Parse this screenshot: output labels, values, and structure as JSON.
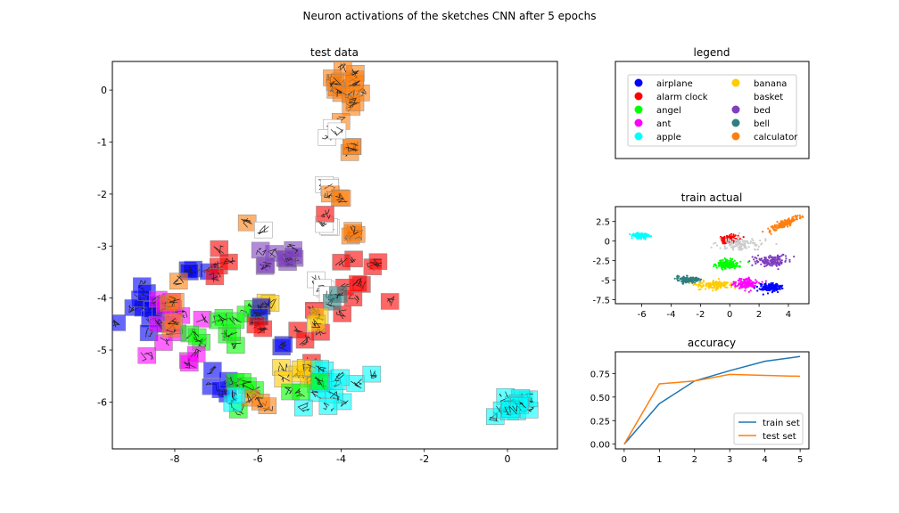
{
  "figure": {
    "suptitle": "Neuron activations of the sketches CNN after 5 epochs"
  },
  "classes": [
    {
      "name": "airplane",
      "color": "#0000ff"
    },
    {
      "name": "alarm clock",
      "color": "#ff0000"
    },
    {
      "name": "angel",
      "color": "#00ff00"
    },
    {
      "name": "ant",
      "color": "#ff00ff"
    },
    {
      "name": "apple",
      "color": "#00ffff"
    },
    {
      "name": "banana",
      "color": "#ffcc00"
    },
    {
      "name": "basket",
      "color": "#ffffff"
    },
    {
      "name": "bed",
      "color": "#7f3fbf"
    },
    {
      "name": "bell",
      "color": "#2f7f7f"
    },
    {
      "name": "calculator",
      "color": "#ff7f0e"
    }
  ],
  "chart_data": [
    {
      "type": "scatter",
      "title": "test data",
      "xticks": [
        -8,
        -6,
        -4,
        -2,
        0
      ],
      "yticks": [
        0,
        -1,
        -2,
        -3,
        -4,
        -5,
        -6
      ],
      "xlim": [
        -9.5,
        1.2
      ],
      "ylim": [
        -6.9,
        0.55
      ],
      "clusters": [
        {
          "class": "calculator",
          "x": -3.9,
          "y": 0.0,
          "sx": 0.2,
          "sy": 0.3,
          "n": 14
        },
        {
          "class": "calculator",
          "x": -3.8,
          "y": -0.9,
          "sx": 0.15,
          "sy": 0.2,
          "n": 4
        },
        {
          "class": "basket",
          "x": -4.3,
          "y": -0.9,
          "sx": 0.15,
          "sy": 0.2,
          "n": 3
        },
        {
          "class": "basket",
          "x": -4.3,
          "y": -1.85,
          "sx": 0.2,
          "sy": 0.1,
          "n": 3
        },
        {
          "class": "calculator",
          "x": -4.0,
          "y": -2.0,
          "sx": 0.2,
          "sy": 0.15,
          "n": 3
        },
        {
          "class": "calculator",
          "x": -3.9,
          "y": -2.8,
          "sx": 0.25,
          "sy": 0.2,
          "n": 4
        },
        {
          "class": "basket",
          "x": -4.3,
          "y": -2.65,
          "sx": 0.15,
          "sy": 0.15,
          "n": 3
        },
        {
          "class": "alarm clock",
          "x": -4.6,
          "y": -2.4,
          "sx": 0.1,
          "sy": 0.1,
          "n": 1
        },
        {
          "class": "calculator",
          "x": -6.2,
          "y": -2.6,
          "sx": 0.05,
          "sy": 0.05,
          "n": 1
        },
        {
          "class": "basket",
          "x": -5.8,
          "y": -2.65,
          "sx": 0.05,
          "sy": 0.05,
          "n": 1
        },
        {
          "class": "bed",
          "x": -5.5,
          "y": -3.25,
          "sx": 0.45,
          "sy": 0.2,
          "n": 10
        },
        {
          "class": "alarm clock",
          "x": -3.7,
          "y": -3.7,
          "sx": 0.35,
          "sy": 0.3,
          "n": 10
        },
        {
          "class": "basket",
          "x": -4.5,
          "y": -3.8,
          "sx": 0.3,
          "sy": 0.2,
          "n": 5
        },
        {
          "class": "airplane",
          "x": -8.6,
          "y": -4.1,
          "sx": 0.4,
          "sy": 0.35,
          "n": 12
        },
        {
          "class": "airplane",
          "x": -7.3,
          "y": -3.5,
          "sx": 0.3,
          "sy": 0.2,
          "n": 4
        },
        {
          "class": "ant",
          "x": -8.0,
          "y": -4.6,
          "sx": 0.45,
          "sy": 0.45,
          "n": 12
        },
        {
          "class": "alarm clock",
          "x": -7.0,
          "y": -3.3,
          "sx": 0.2,
          "sy": 0.25,
          "n": 4
        },
        {
          "class": "calculator",
          "x": -7.8,
          "y": -4.1,
          "sx": 0.4,
          "sy": 0.3,
          "n": 5
        },
        {
          "class": "angel",
          "x": -6.8,
          "y": -4.6,
          "sx": 0.5,
          "sy": 0.3,
          "n": 12
        },
        {
          "class": "banana",
          "x": -5.8,
          "y": -4.1,
          "sx": 0.2,
          "sy": 0.15,
          "n": 3
        },
        {
          "class": "airplane",
          "x": -6.0,
          "y": -4.3,
          "sx": 0.1,
          "sy": 0.1,
          "n": 2
        },
        {
          "class": "alarm clock",
          "x": -6.0,
          "y": -4.6,
          "sx": 0.15,
          "sy": 0.1,
          "n": 2
        },
        {
          "class": "airplane",
          "x": -6.8,
          "y": -5.8,
          "sx": 0.3,
          "sy": 0.2,
          "n": 4
        },
        {
          "class": "angel",
          "x": -6.3,
          "y": -5.7,
          "sx": 0.3,
          "sy": 0.2,
          "n": 5
        },
        {
          "class": "calculator",
          "x": -6.0,
          "y": -6.0,
          "sx": 0.15,
          "sy": 0.15,
          "n": 3
        },
        {
          "class": "apple",
          "x": -6.6,
          "y": -5.9,
          "sx": 0.1,
          "sy": 0.1,
          "n": 2
        },
        {
          "class": "bell",
          "x": -4.2,
          "y": -4.2,
          "sx": 0.15,
          "sy": 0.2,
          "n": 2
        },
        {
          "class": "alarm clock",
          "x": -4.7,
          "y": -4.6,
          "sx": 0.25,
          "sy": 0.3,
          "n": 5
        },
        {
          "class": "banana",
          "x": -4.6,
          "y": -4.5,
          "sx": 0.15,
          "sy": 0.15,
          "n": 2
        },
        {
          "class": "banana",
          "x": -5.0,
          "y": -5.5,
          "sx": 0.4,
          "sy": 0.15,
          "n": 9
        },
        {
          "class": "apple",
          "x": -4.3,
          "y": -5.7,
          "sx": 0.5,
          "sy": 0.3,
          "n": 14
        },
        {
          "class": "airplane",
          "x": -5.5,
          "y": -5.0,
          "sx": 0.15,
          "sy": 0.1,
          "n": 2
        },
        {
          "class": "angel",
          "x": -4.9,
          "y": -5.6,
          "sx": 0.2,
          "sy": 0.2,
          "n": 3
        },
        {
          "class": "ant",
          "x": -7.6,
          "y": -5.2,
          "sx": 0.2,
          "sy": 0.2,
          "n": 3
        },
        {
          "class": "airplane",
          "x": -7.2,
          "y": -5.3,
          "sx": 0.1,
          "sy": 0.1,
          "n": 1
        },
        {
          "class": "apple",
          "x": 0.2,
          "y": -6.0,
          "sx": 0.35,
          "sy": 0.2,
          "n": 16
        }
      ]
    },
    {
      "type": "scatter",
      "title": "train actual",
      "xticks": [
        -6,
        -4,
        -2,
        0,
        2,
        4
      ],
      "yticks": [
        2.5,
        0.0,
        -2.5,
        -5.0,
        -7.5
      ],
      "xlim": [
        -7.8,
        5.4
      ],
      "ylim": [
        -8.0,
        4.4
      ],
      "clusters": [
        {
          "class": "apple",
          "x": -6.1,
          "y": 0.7,
          "sx": 0.5,
          "sy": 0.3,
          "n": 120
        },
        {
          "class": "alarm clock",
          "x": 0.0,
          "y": 0.2,
          "sx": 0.45,
          "sy": 0.5,
          "n": 150
        },
        {
          "class": "basket",
          "x": 0.8,
          "y": -0.4,
          "sx": 1.3,
          "sy": 0.8,
          "n": 120
        },
        {
          "class": "calculator",
          "x": 3.7,
          "y": 2.2,
          "sx": 0.65,
          "sy": 0.5,
          "n": 170
        },
        {
          "class": "bed",
          "x": 2.8,
          "y": -2.5,
          "sx": 0.9,
          "sy": 0.55,
          "n": 150
        },
        {
          "class": "angel",
          "x": -0.2,
          "y": -3.0,
          "sx": 0.65,
          "sy": 0.45,
          "n": 170
        },
        {
          "class": "bell",
          "x": -2.8,
          "y": -4.9,
          "sx": 0.6,
          "sy": 0.35,
          "n": 150
        },
        {
          "class": "banana",
          "x": -1.0,
          "y": -5.6,
          "sx": 1.0,
          "sy": 0.4,
          "n": 160
        },
        {
          "class": "ant",
          "x": 1.1,
          "y": -5.5,
          "sx": 0.7,
          "sy": 0.6,
          "n": 130
        },
        {
          "class": "airplane",
          "x": 2.8,
          "y": -5.9,
          "sx": 0.6,
          "sy": 0.45,
          "n": 180
        }
      ]
    },
    {
      "type": "line",
      "title": "accuracy",
      "x": [
        0,
        1,
        2,
        3,
        4,
        5
      ],
      "xlim": [
        -0.25,
        5.25
      ],
      "ylim": [
        -0.05,
        0.98
      ],
      "xticks": [
        0,
        1,
        2,
        3,
        4,
        5
      ],
      "yticks": [
        "0.00",
        "0.25",
        "0.50",
        "0.75"
      ],
      "legend": "lower right",
      "series": [
        {
          "name": "train set",
          "color": "#1f77b4",
          "values": [
            0.0,
            0.43,
            0.67,
            0.78,
            0.88,
            0.93
          ]
        },
        {
          "name": "test set",
          "color": "#ff7f0e",
          "values": [
            0.0,
            0.64,
            0.67,
            0.74,
            0.73,
            0.72
          ]
        }
      ]
    }
  ],
  "legend_panel": {
    "title": "legend"
  }
}
